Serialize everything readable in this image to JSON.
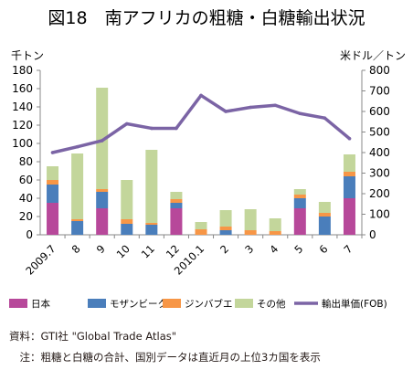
{
  "chart_data": {
    "type": "bar",
    "stacked": true,
    "title": "図18　南アフリカの粗糖・白糖輸出状況",
    "y_left_label": "千トン",
    "y_right_label": "米ドル／トン",
    "ylim_left": [
      0,
      180
    ],
    "ylim_right": [
      0,
      800
    ],
    "y_left_ticks": [
      0,
      20,
      40,
      60,
      80,
      100,
      120,
      140,
      160,
      180
    ],
    "y_right_ticks": [
      0,
      100,
      200,
      300,
      400,
      500,
      600,
      700,
      800
    ],
    "categories": [
      "2009.7",
      "8",
      "9",
      "10",
      "11",
      "12",
      "2010.1",
      "2",
      "3",
      "4",
      "5",
      "6",
      "7"
    ],
    "grid": false,
    "legend_position": "bottom",
    "series": [
      {
        "name": "日本",
        "color": "#b7489a",
        "axis": "left",
        "values": [
          35,
          0,
          29,
          0,
          0,
          29,
          0,
          0,
          0,
          0,
          29,
          0,
          40
        ]
      },
      {
        "name": "モザンビーク",
        "color": "#4a7ebb",
        "axis": "left",
        "values": [
          20,
          15,
          18,
          12,
          11,
          6,
          0,
          5,
          0,
          0,
          11,
          20,
          24
        ]
      },
      {
        "name": "ジンバブエ",
        "color": "#f79646",
        "axis": "left",
        "values": [
          5,
          2,
          3,
          5,
          2,
          4,
          6,
          4,
          5,
          4,
          4,
          4,
          5
        ]
      },
      {
        "name": "その他",
        "color": "#c3d69b",
        "axis": "left",
        "values": [
          15,
          72,
          111,
          43,
          80,
          8,
          8,
          18,
          23,
          14,
          6,
          12,
          19
        ]
      },
      {
        "name": "輸出単価(FOB)",
        "type": "line",
        "color": "#7b64a5",
        "axis": "right",
        "values": [
          400,
          428,
          458,
          540,
          518,
          518,
          678,
          600,
          620,
          630,
          590,
          568,
          468
        ]
      }
    ]
  },
  "source_note": "資料：GTI社 \"Global Trade Atlas\"",
  "footnote": "　注：粗糖と白糖の合計、国別データは直近月の上位3カ国を表示"
}
